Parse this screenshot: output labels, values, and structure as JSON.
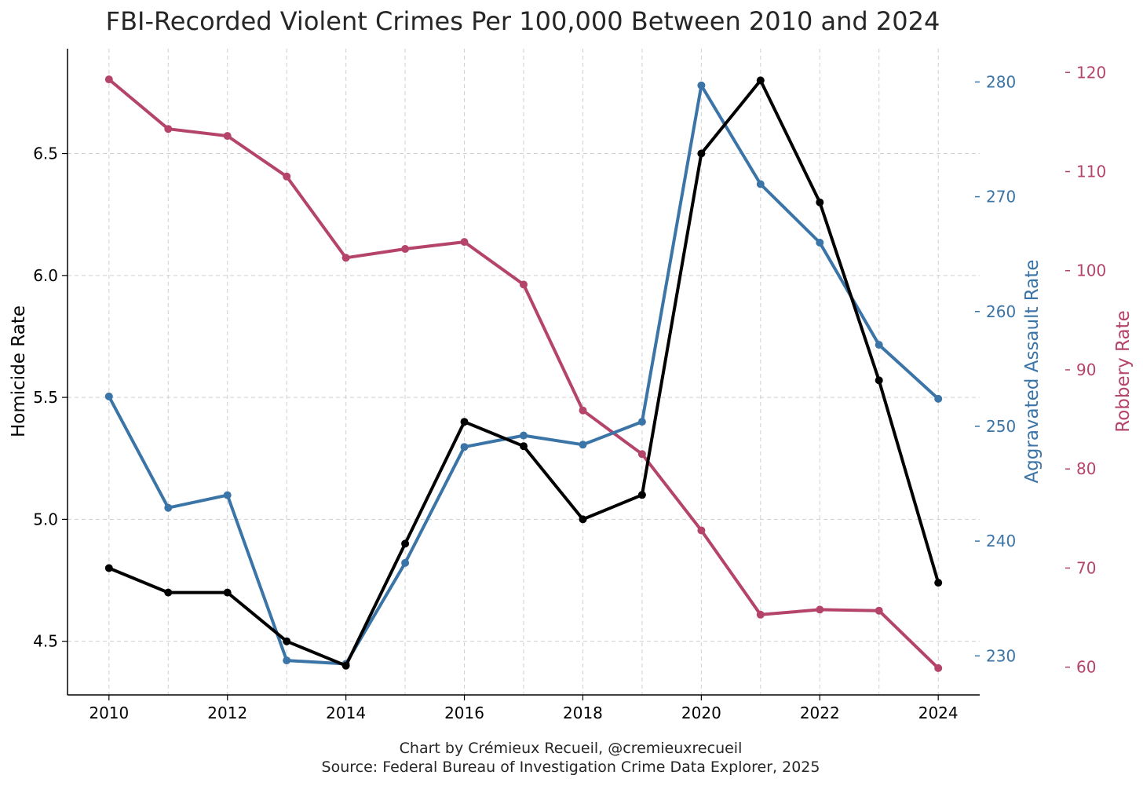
{
  "chart_data": {
    "type": "line",
    "title": "FBI-Recorded Violent Crimes Per 100,000 Between 2010 and 2024",
    "x": [
      2010,
      2011,
      2012,
      2013,
      2014,
      2015,
      2016,
      2017,
      2018,
      2019,
      2020,
      2021,
      2022,
      2023,
      2024
    ],
    "xticks": [
      "2010",
      "2012",
      "2014",
      "2016",
      "2018",
      "2020",
      "2022",
      "2024"
    ],
    "xlim": [
      2009.3,
      2024.7
    ],
    "grid": true,
    "axes": {
      "homicide": {
        "label": "Homicide Rate",
        "side": "left",
        "ylim": [
          4.28,
          6.93
        ],
        "ticks": [
          "4.5",
          "5.0",
          "5.5",
          "6.0",
          "6.5"
        ],
        "color": "#000000"
      },
      "assault": {
        "label": "Aggravated Assault Rate",
        "side": "right",
        "ylim": [
          226.6,
          282.9
        ],
        "ticks": [
          "230",
          "240",
          "250",
          "260",
          "270",
          "280"
        ],
        "color": "#3b74a6"
      },
      "robbery": {
        "label": "Robbery Rate",
        "side": "right-outer",
        "ylim": [
          57.2,
          122.4
        ],
        "ticks": [
          "60",
          "70",
          "80",
          "90",
          "100",
          "110",
          "120"
        ],
        "color": "#b5446a"
      }
    },
    "series": [
      {
        "key": "robbery",
        "axis": "robbery",
        "color": "#b5446a",
        "values": [
          119.3,
          114.3,
          113.6,
          109.5,
          101.3,
          102.2,
          102.9,
          98.6,
          85.9,
          81.5,
          73.8,
          65.3,
          65.8,
          65.7,
          59.9
        ]
      },
      {
        "key": "assault",
        "axis": "assault",
        "color": "#3b74a6",
        "values": [
          252.6,
          242.9,
          244.0,
          229.6,
          229.3,
          238.1,
          248.2,
          249.2,
          248.4,
          250.4,
          279.7,
          271.1,
          266.0,
          257.1,
          252.4
        ]
      },
      {
        "key": "homicide",
        "axis": "homicide",
        "color": "#000000",
        "values": [
          4.8,
          4.7,
          4.7,
          4.5,
          4.4,
          4.9,
          5.4,
          5.3,
          5.0,
          5.1,
          6.5,
          6.8,
          6.3,
          5.57,
          4.74
        ]
      }
    ]
  },
  "credit": {
    "line1": "Chart by Crémieux Recueil, @cremieuxrecueil",
    "line2": "Source: Federal Bureau of Investigation Crime Data Explorer, 2025"
  }
}
